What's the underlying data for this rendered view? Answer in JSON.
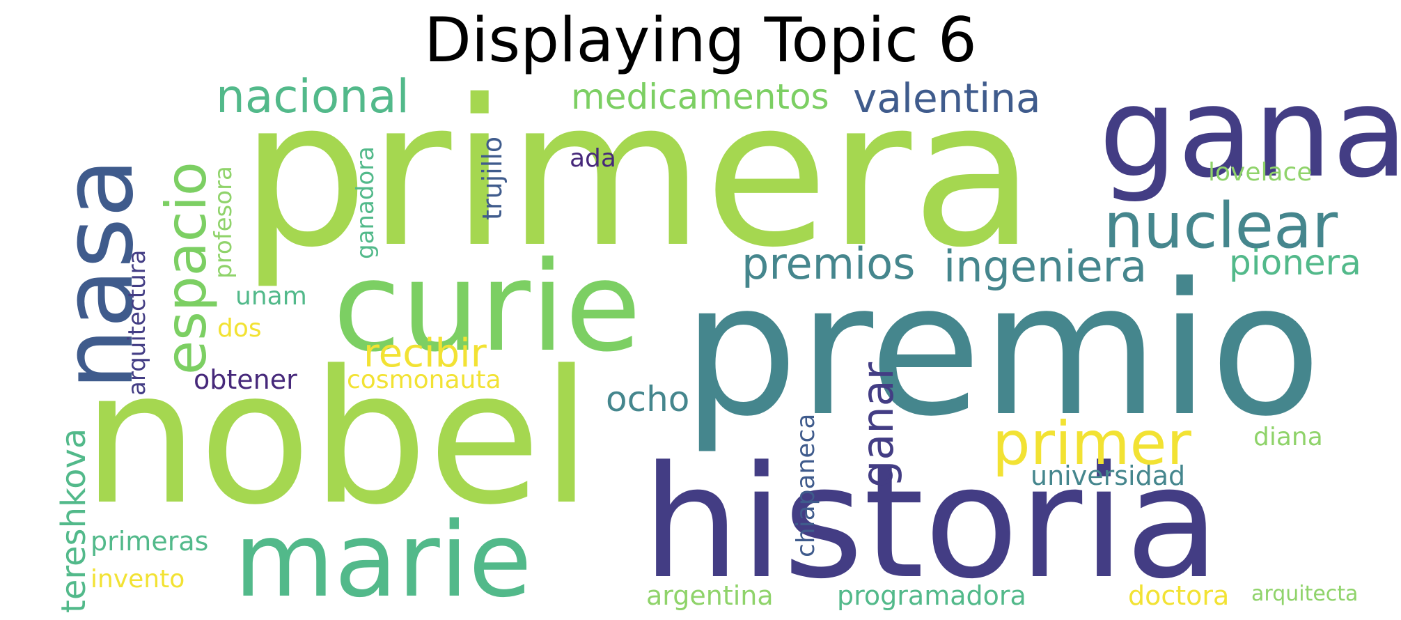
{
  "title": "Displaying Topic 6",
  "words": {
    "primera": "primera",
    "premio": "premio",
    "nobel": "nobel",
    "historia": "historia",
    "gana": "gana",
    "curie": "curie",
    "marie": "marie",
    "nasa": "nasa",
    "espacio": "espacio",
    "nuclear": "nuclear",
    "nacional": "nacional",
    "medicamentos": "medicamentos",
    "valentina": "valentina",
    "premios": "premios",
    "ingeniera": "ingeniera",
    "pionera": "pionera",
    "primer": "primer",
    "ganar": "ganar",
    "recibir": "recibir",
    "ocho": "ocho",
    "tereshkova": "tereshkova",
    "trujillo": "trujillo",
    "ada": "ada",
    "lovelace": "lovelace",
    "profesora": "profesora",
    "ganadora": "ganadora",
    "arquitectura": "arquitectura",
    "unam": "unam",
    "dos": "dos",
    "obtener": "obtener",
    "cosmonauta": "cosmonauta",
    "chiapaneca": "chiapaneca",
    "universidad": "universidad",
    "diana": "diana",
    "primeras": "primeras",
    "invento": "invento",
    "argentina": "argentina",
    "programadora": "programadora",
    "doctora": "doctora",
    "arquitecta": "arquitecta"
  },
  "colors": {
    "lime": "#a5d750",
    "green": "#7ccf63",
    "seagreen": "#52b98a",
    "teal": "#45868d",
    "slate": "#3f5b8c",
    "indigo": "#433d84",
    "purple": "#46287a",
    "yellow": "#f2e233",
    "lightgreen": "#8fd36a"
  }
}
